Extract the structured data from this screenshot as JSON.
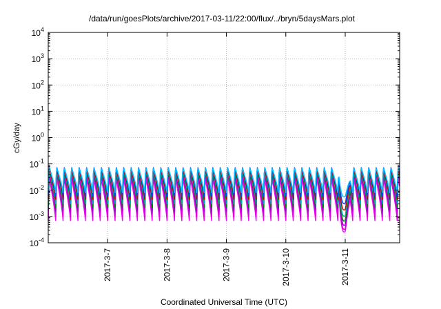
{
  "chart_data": {
    "type": "line",
    "title": "/data/run/goesPlots/archive/2017-03-11/22:00/flux/../bryn/5daysMars.plot",
    "xlabel": "Coordinated Universal Time (UTC)",
    "ylabel": "cGy/day",
    "yscale": "log",
    "ylim": [
      0.0001,
      10000
    ],
    "xlim": [
      "2017-03-06T00:00",
      "2017-03-11T22:00"
    ],
    "grid": true,
    "legend": "none",
    "y_ticks": [
      {
        "base": "10",
        "exp": "-4"
      },
      {
        "base": "10",
        "exp": "-3"
      },
      {
        "base": "10",
        "exp": "-2"
      },
      {
        "base": "10",
        "exp": "-1"
      },
      {
        "base": "10",
        "exp": "0"
      },
      {
        "base": "10",
        "exp": "1"
      },
      {
        "base": "10",
        "exp": "2"
      },
      {
        "base": "10",
        "exp": "3"
      },
      {
        "base": "10",
        "exp": "4"
      }
    ],
    "x_ticks": [
      {
        "label": "2017-3-7",
        "date": "2017-03-07T00:00"
      },
      {
        "label": "2017-3-8",
        "date": "2017-03-08T00:00"
      },
      {
        "label": "2017-3-9",
        "date": "2017-03-09T00:00"
      },
      {
        "label": "2017-3-10",
        "date": "2017-03-10T00:00"
      },
      {
        "label": "2017-3-11",
        "date": "2017-03-11T00:00"
      }
    ],
    "series": [
      {
        "color": "#ff00ff",
        "peak": 0.03,
        "trough": 0.0007
      },
      {
        "color": "#dd00dd",
        "peak": 0.04,
        "trough": 0.001
      },
      {
        "color": "#9400d3",
        "peak": 0.05,
        "trough": 0.0016
      },
      {
        "color": "#008000",
        "peak": 0.055,
        "trough": 0.0022
      },
      {
        "color": "#00aaaa",
        "peak": 0.06,
        "trough": 0.003
      },
      {
        "color": "#cc0000",
        "peak": 0.065,
        "trough": 0.0045
      },
      {
        "color": "#0044ff",
        "peak": 0.08,
        "trough": 0.006
      },
      {
        "color": "#00bfff",
        "peak": 0.075,
        "trough": 0.008
      }
    ],
    "cycles_per_day": 8,
    "dip": {
      "date": "2017-03-11T00:00",
      "min": 0.0002
    }
  }
}
